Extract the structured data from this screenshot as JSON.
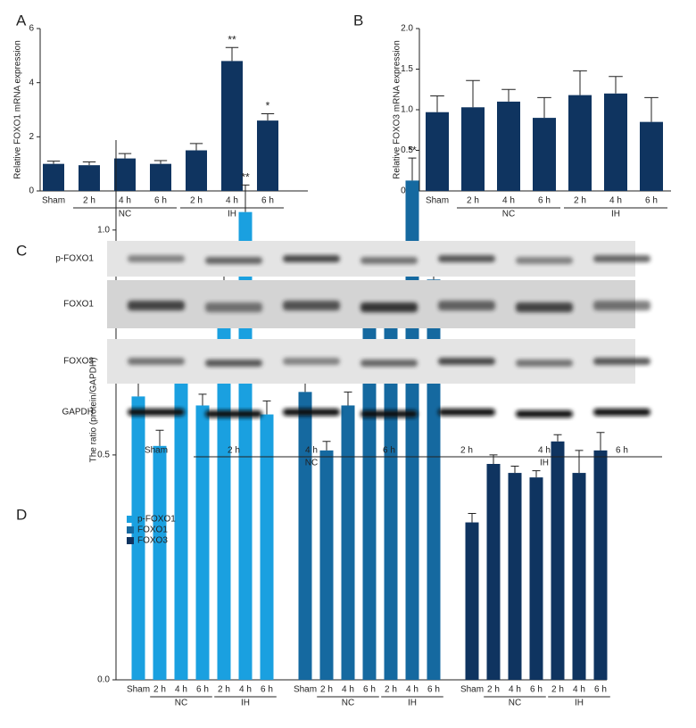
{
  "chart_data": [
    {
      "type": "bar",
      "panel": "A",
      "ylabel": "Relative FOXO1 mRNA expression",
      "color": "#0f3460",
      "categories": [
        "Sham",
        "2 h",
        "4 h",
        "6 h",
        "2 h",
        "4 h",
        "6 h"
      ],
      "groups": [
        {
          "name": "NC",
          "start": 1,
          "end": 3
        },
        {
          "name": "IH",
          "start": 4,
          "end": 6
        }
      ],
      "values": [
        1.0,
        0.95,
        1.2,
        1.0,
        1.5,
        4.8,
        2.6
      ],
      "errors": [
        0.1,
        0.12,
        0.18,
        0.12,
        0.25,
        0.5,
        0.25
      ],
      "significance": [
        null,
        null,
        null,
        null,
        null,
        "**",
        "*"
      ],
      "ylim": [
        0,
        6
      ],
      "yticks": [
        0,
        2,
        4,
        6
      ]
    },
    {
      "type": "bar",
      "panel": "B",
      "ylabel": "Relative FOXO3 mRNA expression",
      "color": "#0f3460",
      "categories": [
        "Sham",
        "2 h",
        "4 h",
        "6 h",
        "2 h",
        "4 h",
        "6 h"
      ],
      "groups": [
        {
          "name": "NC",
          "start": 1,
          "end": 3
        },
        {
          "name": "IH",
          "start": 4,
          "end": 6
        }
      ],
      "values": [
        0.97,
        1.03,
        1.1,
        0.9,
        1.18,
        1.2,
        0.85
      ],
      "errors": [
        0.2,
        0.33,
        0.15,
        0.25,
        0.3,
        0.21,
        0.3
      ],
      "significance": [
        null,
        null,
        null,
        null,
        null,
        null,
        null
      ],
      "ylim": [
        0,
        2
      ],
      "yticks": [
        {
          "value": 0,
          "label": "0.0"
        },
        {
          "value": 0.5,
          "label": "0.5"
        },
        {
          "value": 1,
          "label": "1.0"
        },
        {
          "value": 1.5,
          "label": "1.5"
        },
        {
          "value": 2,
          "label": "2.0"
        }
      ]
    },
    {
      "type": "grouped-bar",
      "panel": "D",
      "ylabel": "The ratio (protein/GAPDH)",
      "categories": [
        "Sham",
        "2 h",
        "4 h",
        "6 h",
        "2 h",
        "4 h",
        "6 h"
      ],
      "groups": [
        {
          "name": "NC",
          "start": 1,
          "end": 3
        },
        {
          "name": "IH",
          "start": 4,
          "end": 6
        }
      ],
      "legend": "top-left",
      "series": [
        {
          "name": "p-FOXO1",
          "color": "#1aa0e0",
          "values": [
            0.63,
            0.52,
            0.69,
            0.61,
            0.86,
            1.04,
            0.59
          ],
          "errors": [
            0.04,
            0.035,
            0.04,
            0.025,
            0.05,
            0.06,
            0.03
          ],
          "significance": [
            null,
            null,
            null,
            null,
            "*",
            "**",
            null
          ]
        },
        {
          "name": "FOXO1",
          "color": "#1569a0",
          "values": [
            0.64,
            0.51,
            0.61,
            0.79,
            0.79,
            1.11,
            0.89
          ],
          "errors": [
            0.02,
            0.02,
            0.03,
            0.04,
            0.04,
            0.05,
            0.06
          ],
          "significance": [
            null,
            null,
            null,
            null,
            null,
            "**",
            null
          ]
        },
        {
          "name": "FOXO3",
          "color": "#0f3460",
          "values": [
            0.35,
            0.48,
            0.46,
            0.45,
            0.53,
            0.46,
            0.51
          ],
          "errors": [
            0.02,
            0.02,
            0.015,
            0.015,
            0.015,
            0.05,
            0.04
          ],
          "significance": [
            null,
            null,
            null,
            null,
            null,
            null,
            null
          ]
        }
      ],
      "ylim": [
        0,
        1.2
      ],
      "yticks": [
        {
          "value": 0,
          "label": "0.0"
        },
        {
          "value": 0.5,
          "label": "0.5"
        },
        {
          "value": 1,
          "label": "1.0"
        }
      ]
    }
  ],
  "blot": {
    "panel": "C",
    "rows": [
      "p-FOXO1",
      "FOXO1",
      "FOXO3",
      "GAPDH"
    ],
    "lanes": [
      "Sham",
      "2 h",
      "4 h",
      "6 h",
      "2 h",
      "4 h",
      "6 h"
    ],
    "groups": [
      {
        "name": "NC",
        "start": 1,
        "end": 3
      },
      {
        "name": "IH",
        "start": 4,
        "end": 6
      }
    ]
  }
}
